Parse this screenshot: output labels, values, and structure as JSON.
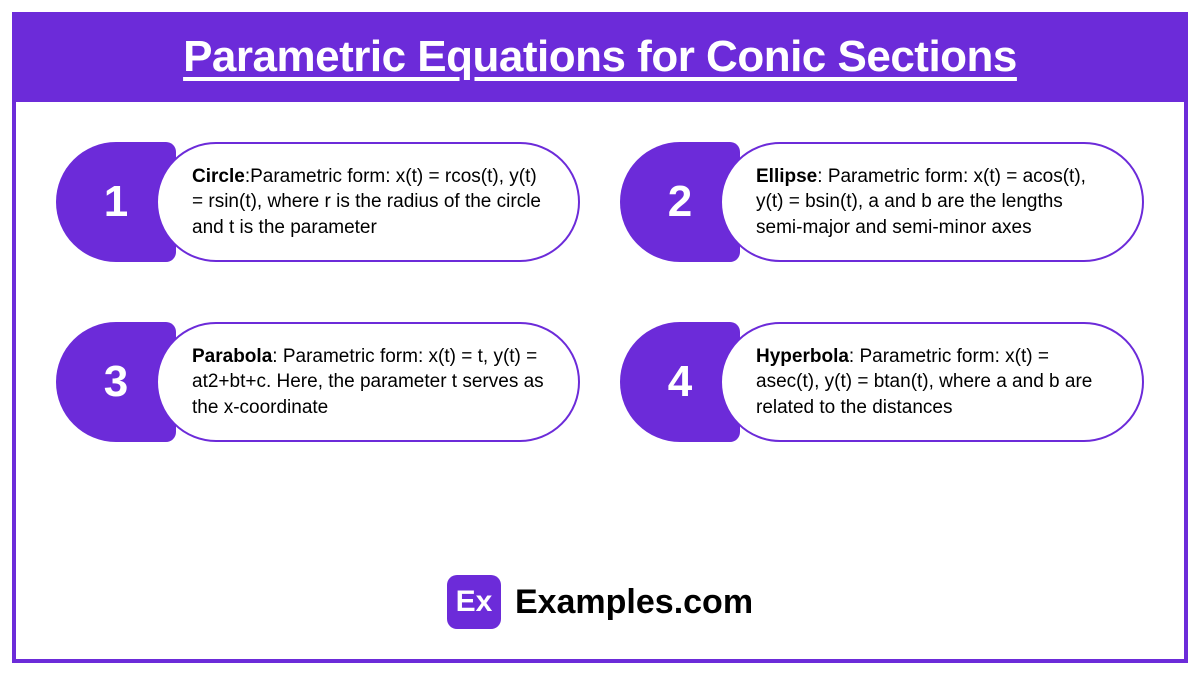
{
  "colors": {
    "accent": "#6c2bd9",
    "background": "#ffffff",
    "text": "#000000"
  },
  "title": "Parametric Equations for Conic Sections",
  "items": [
    {
      "num": "1",
      "bold": "Circle",
      "sep": ":",
      "rest": "Parametric form: x(t) = rcos(t), y(t) = rsin(t), where r is the radius of the circle and t is the parameter"
    },
    {
      "num": "2",
      "bold": "Ellipse",
      "sep": ": ",
      "rest": "Parametric form: x(t) = acos(t), y(t) = bsin(t), a and b are the lengths  semi-major and semi-minor axes"
    },
    {
      "num": "3",
      "bold": "Parabola",
      "sep": ": ",
      "rest": "Parametric form:  x(t) = t, y(t) = at2+bt+c. Here, the parameter t serves as the x-coordinate"
    },
    {
      "num": "4",
      "bold": "Hyperbola",
      "sep": ": ",
      "rest": "Parametric form: x(t) = asec(t), y(t) = btan(t), where a and b are related to the distances"
    }
  ],
  "logo_text": "Ex",
  "brand": "Examples.com"
}
